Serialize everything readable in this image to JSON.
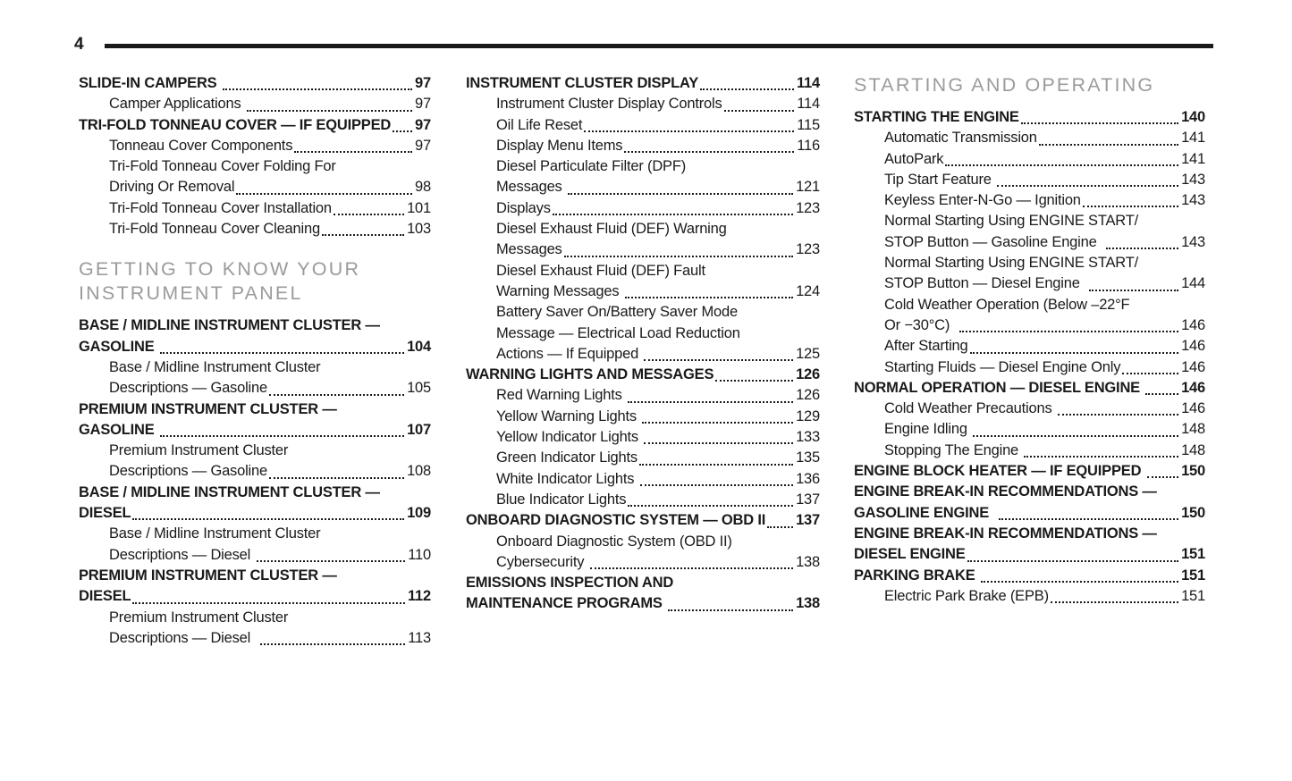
{
  "page": {
    "number": "4"
  },
  "colors": {
    "text": "#1a1a1a",
    "section_header": "#9b9b9b",
    "rule": "#141414"
  },
  "columns": [
    {
      "entries": [
        {
          "type": "main",
          "last": "SLIDE-IN CAMPERS ",
          "page": "97"
        },
        {
          "type": "sub",
          "last": "Camper Applications ",
          "page": "97"
        },
        {
          "type": "main",
          "last": "TRI-FOLD TONNEAU COVER — IF EQUIPPED",
          "page": "97"
        },
        {
          "type": "sub",
          "last": "Tonneau Cover Components",
          "page": "97"
        },
        {
          "type": "sub",
          "lines": [
            "Tri-Fold Tonneau Cover Folding For"
          ],
          "last": "Driving Or Removal",
          "page": "98"
        },
        {
          "type": "sub",
          "last": "Tri-Fold Tonneau Cover Installation",
          "page": "101"
        },
        {
          "type": "sub",
          "last": "Tri-Fold Tonneau Cover Cleaning",
          "page": "103"
        },
        {
          "type": "section",
          "lines": [
            "GETTING TO KNOW YOUR",
            "INSTRUMENT PANEL"
          ]
        },
        {
          "type": "main",
          "lines": [
            "BASE / MIDLINE INSTRUMENT CLUSTER —"
          ],
          "last": "GASOLINE ",
          "page": "104"
        },
        {
          "type": "sub",
          "lines": [
            "Base / Midline Instrument Cluster"
          ],
          "last": "Descriptions — Gasoline",
          "page": "105"
        },
        {
          "type": "main",
          "lines": [
            "PREMIUM INSTRUMENT CLUSTER —"
          ],
          "last": "GASOLINE ",
          "page": "107"
        },
        {
          "type": "sub",
          "lines": [
            "Premium Instrument Cluster"
          ],
          "last": "Descriptions — Gasoline",
          "page": "108"
        },
        {
          "type": "main",
          "lines": [
            "BASE / MIDLINE INSTRUMENT CLUSTER —"
          ],
          "last": "DIESEL",
          "page": "109"
        },
        {
          "type": "sub",
          "lines": [
            "Base / Midline Instrument Cluster"
          ],
          "last": "Descriptions — Diesel ",
          "page": "110"
        },
        {
          "type": "main",
          "lines": [
            "PREMIUM INSTRUMENT CLUSTER —"
          ],
          "last": "DIESEL",
          "page": "112"
        },
        {
          "type": "sub",
          "lines": [
            "Premium Instrument Cluster"
          ],
          "last": "Descriptions — Diesel  ",
          "page": "113"
        }
      ]
    },
    {
      "entries": [
        {
          "type": "main",
          "last": "INSTRUMENT CLUSTER DISPLAY",
          "page": "114"
        },
        {
          "type": "sub",
          "last": "Instrument Cluster Display Controls",
          "page": "114"
        },
        {
          "type": "sub",
          "last": "Oil Life Reset",
          "page": "115"
        },
        {
          "type": "sub",
          "last": "Display Menu Items",
          "page": "116"
        },
        {
          "type": "sub",
          "lines": [
            "Diesel Particulate Filter (DPF)"
          ],
          "last": "Messages ",
          "page": "121"
        },
        {
          "type": "sub",
          "last": "Displays",
          "page": "123"
        },
        {
          "type": "sub",
          "lines": [
            "Diesel Exhaust Fluid (DEF) Warning"
          ],
          "last": "Messages",
          "page": "123"
        },
        {
          "type": "sub",
          "lines": [
            "Diesel Exhaust Fluid (DEF) Fault"
          ],
          "last": "Warning Messages ",
          "page": "124"
        },
        {
          "type": "sub",
          "lines": [
            "Battery Saver On/Battery Saver Mode",
            "Message — Electrical Load Reduction"
          ],
          "last": "Actions — If Equipped ",
          "page": "125"
        },
        {
          "type": "main",
          "last": "WARNING LIGHTS AND MESSAGES",
          "page": "126"
        },
        {
          "type": "sub",
          "last": "Red Warning Lights ",
          "page": "126"
        },
        {
          "type": "sub",
          "last": "Yellow Warning Lights ",
          "page": "129"
        },
        {
          "type": "sub",
          "last": "Yellow Indicator Lights ",
          "page": "133"
        },
        {
          "type": "sub",
          "last": "Green Indicator Lights",
          "page": "135"
        },
        {
          "type": "sub",
          "last": "White Indicator Lights ",
          "page": "136"
        },
        {
          "type": "sub",
          "last": "Blue Indicator Lights",
          "page": "137"
        },
        {
          "type": "main",
          "last": "ONBOARD DIAGNOSTIC SYSTEM — OBD II",
          "page": "137"
        },
        {
          "type": "sub",
          "lines": [
            "Onboard Diagnostic System (OBD II)"
          ],
          "last": "Cybersecurity ",
          "page": "138"
        },
        {
          "type": "main",
          "lines": [
            "EMISSIONS INSPECTION AND"
          ],
          "last": "MAINTENANCE PROGRAMS ",
          "page": "138"
        }
      ]
    },
    {
      "entries": [
        {
          "type": "section",
          "lines": [
            "STARTING AND OPERATING"
          ]
        },
        {
          "type": "main",
          "last": "STARTING THE ENGINE",
          "page": "140"
        },
        {
          "type": "sub",
          "last": "Automatic Transmission",
          "page": "141"
        },
        {
          "type": "sub",
          "last": "AutoPark",
          "page": "141"
        },
        {
          "type": "sub",
          "last": "Tip Start Feature ",
          "page": "143"
        },
        {
          "type": "sub",
          "last": "Keyless Enter-N-Go — Ignition",
          "page": "143"
        },
        {
          "type": "sub",
          "lines": [
            "Normal Starting Using ENGINE START/"
          ],
          "last": "STOP Button — Gasoline Engine  ",
          "page": "143"
        },
        {
          "type": "sub",
          "lines": [
            "Normal Starting Using ENGINE START/"
          ],
          "last": "STOP Button — Diesel Engine  ",
          "page": "144"
        },
        {
          "type": "sub",
          "lines": [
            "Cold Weather Operation (Below –22°F"
          ],
          "last": "Or −30°C)  ",
          "page": "146"
        },
        {
          "type": "sub",
          "last": "After Starting",
          "page": "146"
        },
        {
          "type": "sub",
          "last": "Starting Fluids — Diesel Engine Only",
          "page": "146"
        },
        {
          "type": "main",
          "last": "NORMAL OPERATION — DIESEL ENGINE ",
          "page": "146"
        },
        {
          "type": "sub",
          "last": "Cold Weather Precautions ",
          "page": "146"
        },
        {
          "type": "sub",
          "last": "Engine Idling ",
          "page": "148"
        },
        {
          "type": "sub",
          "last": "Stopping The Engine ",
          "page": "148"
        },
        {
          "type": "main",
          "last": "ENGINE BLOCK HEATER — IF EQUIPPED ",
          "page": "150"
        },
        {
          "type": "main",
          "lines": [
            "ENGINE BREAK-IN RECOMMENDATIONS —"
          ],
          "last": "GASOLINE ENGINE  ",
          "page": "150"
        },
        {
          "type": "main",
          "lines": [
            "ENGINE BREAK-IN RECOMMENDATIONS —"
          ],
          "last": "DIESEL ENGINE",
          "page": "151"
        },
        {
          "type": "main",
          "last": "PARKING BRAKE ",
          "page": "151"
        },
        {
          "type": "sub",
          "last": "Electric Park Brake (EPB)",
          "page": "151"
        }
      ]
    }
  ]
}
